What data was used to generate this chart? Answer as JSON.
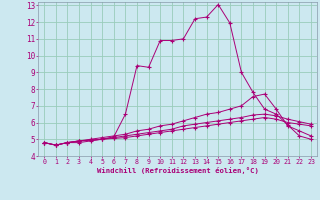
{
  "xlabel": "Windchill (Refroidissement éolien,°C)",
  "xlim": [
    -0.5,
    23.5
  ],
  "ylim": [
    4,
    13.2
  ],
  "yticks": [
    4,
    5,
    6,
    7,
    8,
    9,
    10,
    11,
    12,
    13
  ],
  "xticks": [
    0,
    1,
    2,
    3,
    4,
    5,
    6,
    7,
    8,
    9,
    10,
    11,
    12,
    13,
    14,
    15,
    16,
    17,
    18,
    19,
    20,
    21,
    22,
    23
  ],
  "bg_color": "#cce8f0",
  "grid_color": "#99ccbb",
  "line_color": "#aa0077",
  "lines": [
    [
      4.8,
      4.65,
      4.8,
      4.8,
      4.9,
      5.0,
      5.15,
      6.5,
      9.4,
      9.3,
      10.9,
      10.9,
      11.0,
      12.2,
      12.3,
      13.05,
      11.95,
      9.0,
      7.8,
      6.8,
      6.5,
      5.85,
      5.2,
      5.0
    ],
    [
      4.8,
      4.65,
      4.8,
      4.9,
      5.0,
      5.1,
      5.2,
      5.3,
      5.5,
      5.6,
      5.8,
      5.9,
      6.1,
      6.3,
      6.5,
      6.6,
      6.8,
      7.0,
      7.55,
      7.7,
      6.8,
      5.8,
      5.5,
      5.2
    ],
    [
      4.8,
      4.65,
      4.8,
      4.9,
      4.95,
      5.0,
      5.1,
      5.2,
      5.3,
      5.4,
      5.5,
      5.6,
      5.8,
      5.9,
      6.0,
      6.1,
      6.2,
      6.3,
      6.45,
      6.5,
      6.4,
      6.2,
      6.05,
      5.9
    ],
    [
      4.8,
      4.65,
      4.8,
      4.9,
      4.95,
      5.0,
      5.05,
      5.1,
      5.2,
      5.3,
      5.4,
      5.5,
      5.6,
      5.7,
      5.8,
      5.9,
      6.0,
      6.1,
      6.2,
      6.3,
      6.2,
      6.0,
      5.9,
      5.8
    ]
  ]
}
